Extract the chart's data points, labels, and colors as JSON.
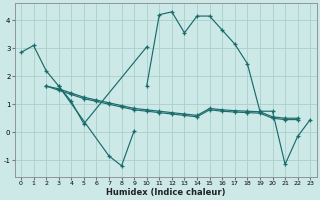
{
  "xlabel": "Humidex (Indice chaleur)",
  "background_color": "#cce9e8",
  "grid_color": "#aad0cc",
  "line_color": "#1a6b6b",
  "xlim": [
    -0.5,
    23.5
  ],
  "ylim": [
    -1.6,
    4.6
  ],
  "yticks": [
    -1,
    0,
    1,
    2,
    3,
    4
  ],
  "xticks": [
    0,
    1,
    2,
    3,
    4,
    5,
    6,
    7,
    8,
    9,
    10,
    11,
    12,
    13,
    14,
    15,
    16,
    17,
    18,
    19,
    20,
    21,
    22,
    23
  ],
  "series": [
    {
      "x": [
        0,
        1,
        2,
        3,
        4,
        5,
        10
      ],
      "y": [
        2.85,
        3.1,
        2.2,
        1.65,
        1.1,
        0.3,
        3.05
      ]
    },
    {
      "x": [
        2,
        3,
        4,
        5,
        6,
        7,
        8,
        9,
        10,
        11,
        12,
        13,
        14,
        15,
        16,
        17,
        18,
        19,
        20,
        21,
        22
      ],
      "y": [
        1.65,
        1.55,
        1.4,
        1.25,
        1.15,
        1.05,
        0.95,
        0.85,
        0.8,
        0.75,
        0.7,
        0.65,
        0.6,
        0.85,
        0.8,
        0.77,
        0.75,
        0.73,
        0.55,
        0.5,
        0.5
      ]
    },
    {
      "x": [
        2,
        3,
        4,
        5,
        6,
        7,
        8,
        9,
        10,
        11,
        12,
        13,
        14,
        15,
        16,
        17,
        18,
        19,
        20,
        21,
        22
      ],
      "y": [
        1.65,
        1.5,
        1.35,
        1.2,
        1.1,
        1.0,
        0.9,
        0.8,
        0.75,
        0.7,
        0.65,
        0.6,
        0.55,
        0.8,
        0.75,
        0.72,
        0.7,
        0.68,
        0.5,
        0.45,
        0.45
      ]
    },
    {
      "x": [
        3,
        7,
        8,
        9
      ],
      "y": [
        1.65,
        -0.85,
        -1.2,
        0.05
      ]
    },
    {
      "x": [
        10,
        11,
        12,
        13,
        14,
        15,
        16,
        17,
        18,
        19,
        20,
        21,
        22,
        23
      ],
      "y": [
        1.65,
        4.2,
        4.3,
        3.55,
        4.15,
        4.15,
        3.65,
        3.15,
        2.45,
        0.75,
        0.75,
        -1.15,
        -0.15,
        0.45
      ]
    }
  ]
}
